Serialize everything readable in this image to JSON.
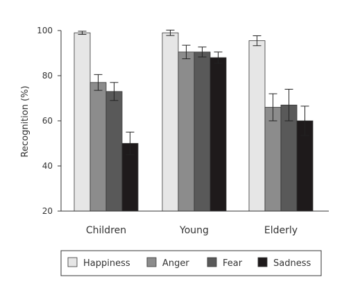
{
  "chart_data": {
    "type": "bar",
    "title": "",
    "xlabel": "",
    "ylabel": "Recognition (%)",
    "ylim": [
      20,
      100
    ],
    "yticks": [
      20,
      40,
      60,
      80,
      100
    ],
    "grid": false,
    "legend_position": "bottom",
    "categories": [
      "Children",
      "Young",
      "Elderly"
    ],
    "series": [
      {
        "name": "Happiness",
        "color": "#e6e6e6",
        "values": [
          99,
          99,
          95.5
        ],
        "errors": [
          0.7,
          1.2,
          2.2
        ]
      },
      {
        "name": "Anger",
        "color": "#8c8c8c",
        "values": [
          77,
          90.5,
          66
        ],
        "errors": [
          3.5,
          3,
          6
        ]
      },
      {
        "name": "Fear",
        "color": "#595959",
        "values": [
          73,
          90.5,
          67
        ],
        "errors": [
          4,
          2.2,
          7
        ]
      },
      {
        "name": "Sadness",
        "color": "#1e1a1b",
        "values": [
          50,
          88,
          60
        ],
        "errors": [
          5,
          2.5,
          6.5
        ]
      }
    ]
  }
}
